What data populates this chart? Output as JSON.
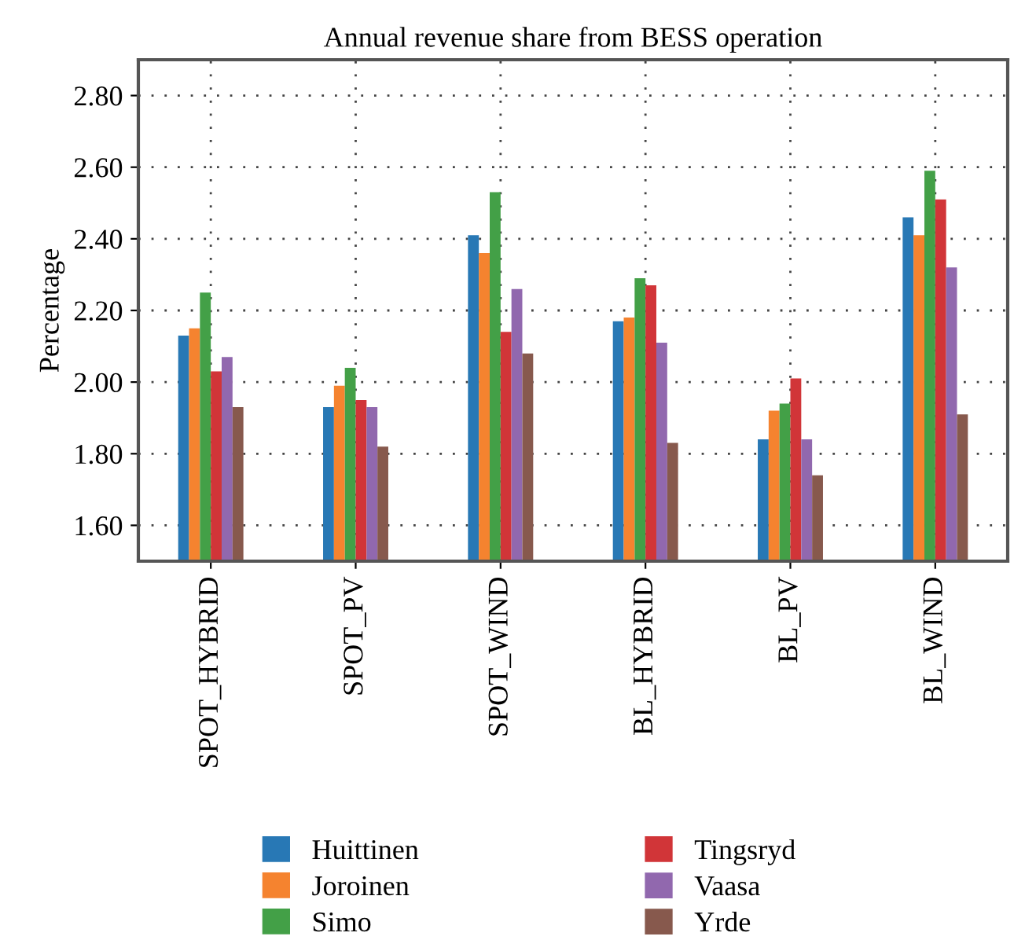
{
  "chart_data": {
    "type": "bar",
    "title": "Annual revenue share from BESS operation",
    "ylabel": "Percentage",
    "categories": [
      "SPOT_HYBRID",
      "SPOT_PV",
      "SPOT_WIND",
      "BL_HYBRID",
      "BL_PV",
      "BL_WIND"
    ],
    "series": [
      {
        "name": "Huittinen",
        "color": "#2878b5",
        "values": [
          2.13,
          1.93,
          2.41,
          2.17,
          1.84,
          2.46
        ]
      },
      {
        "name": "Joroinen",
        "color": "#f5832f",
        "values": [
          2.15,
          1.99,
          2.36,
          2.18,
          1.92,
          2.41
        ]
      },
      {
        "name": "Simo",
        "color": "#43a047",
        "values": [
          2.25,
          2.04,
          2.53,
          2.29,
          1.94,
          2.59
        ]
      },
      {
        "name": "Tingsryd",
        "color": "#d13538",
        "values": [
          2.03,
          1.95,
          2.14,
          2.27,
          2.01,
          2.51
        ]
      },
      {
        "name": "Vaasa",
        "color": "#9168ae",
        "values": [
          2.07,
          1.93,
          2.26,
          2.11,
          1.84,
          2.32
        ]
      },
      {
        "name": "Yrde",
        "color": "#87594d",
        "values": [
          1.93,
          1.82,
          2.08,
          1.83,
          1.74,
          1.91
        ]
      }
    ],
    "ylim": [
      1.5,
      2.9
    ],
    "yticks": [
      {
        "value": 1.6,
        "label": "1.60"
      },
      {
        "value": 1.8,
        "label": "1.80"
      },
      {
        "value": 2.0,
        "label": "2.00"
      },
      {
        "value": 2.2,
        "label": "2.20"
      },
      {
        "value": 2.4,
        "label": "2.40"
      },
      {
        "value": 2.6,
        "label": "2.60"
      },
      {
        "value": 2.8,
        "label": "2.80"
      }
    ],
    "grid": true,
    "legend": "bottom"
  }
}
